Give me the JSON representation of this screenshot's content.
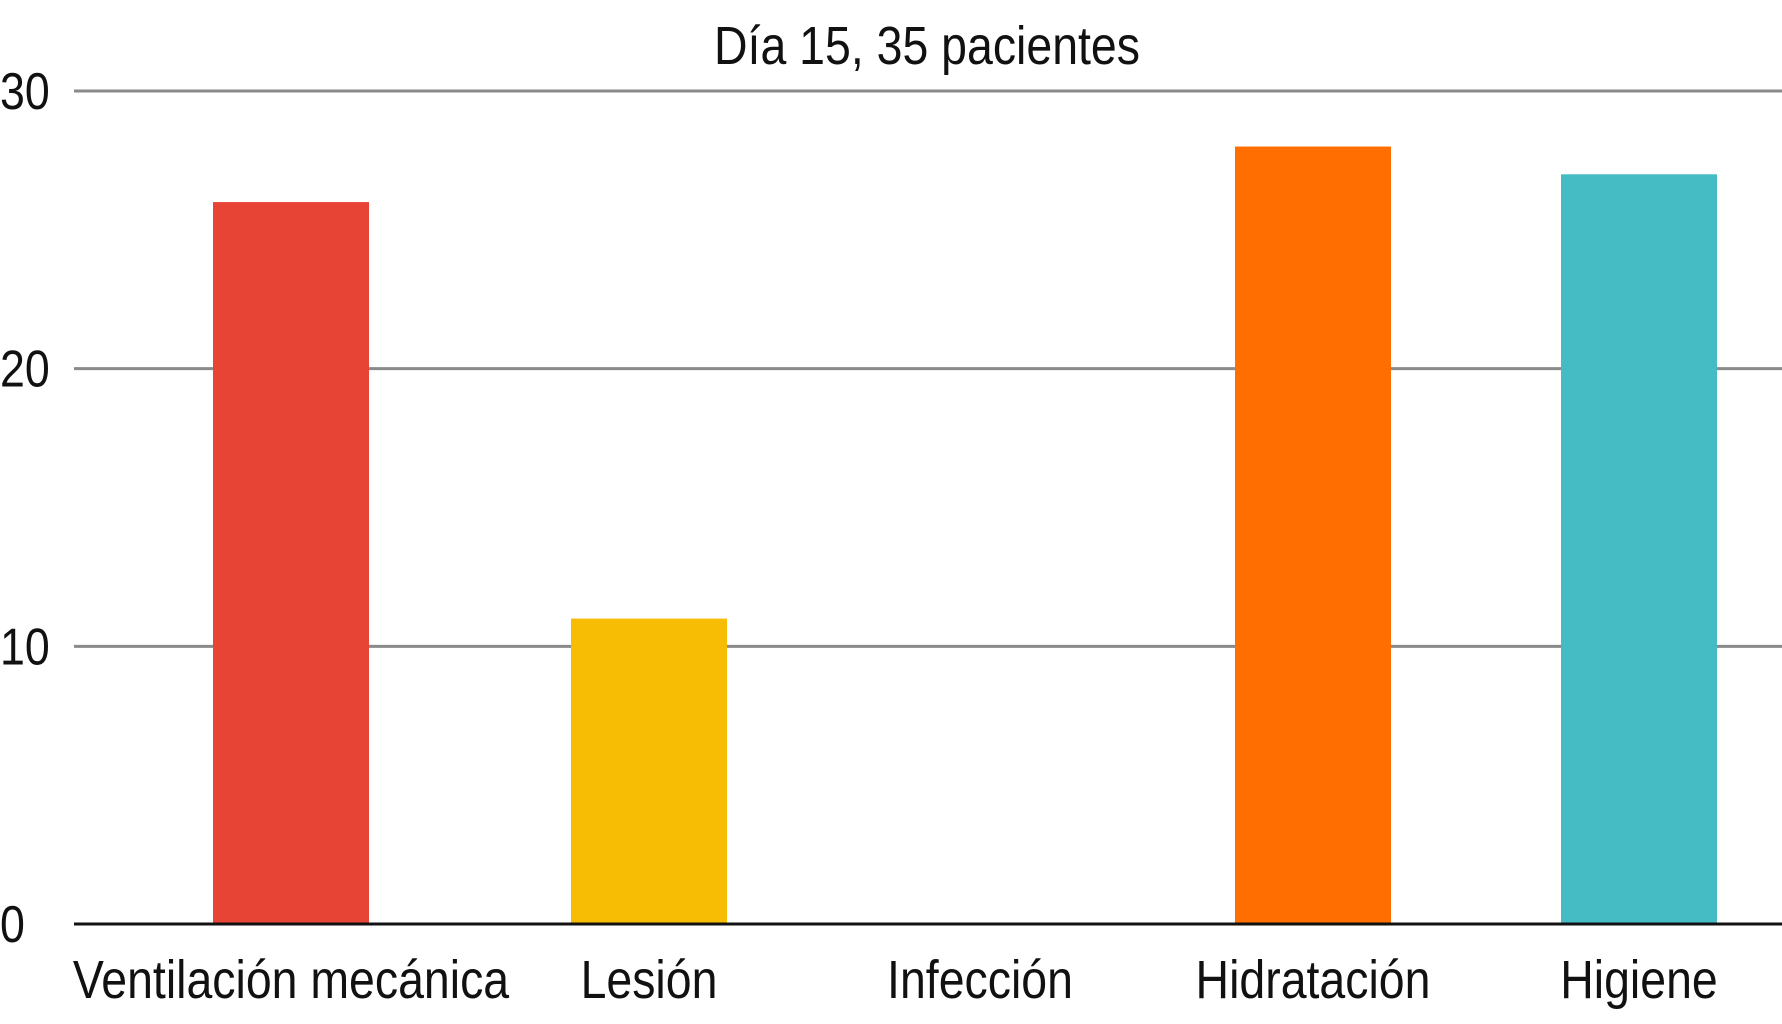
{
  "chart_data": {
    "type": "bar",
    "title": "Día 15, 35 pacientes",
    "xlabel": "",
    "ylabel": "",
    "ylim": [
      0,
      30
    ],
    "yticks": [
      0,
      10,
      20,
      30
    ],
    "grid": true,
    "categories": [
      "Ventilación mecánica",
      "Lesión",
      "Infección",
      "Hidratación",
      "Higiene"
    ],
    "values": [
      26,
      11,
      0,
      28,
      27
    ],
    "colors": [
      "#E84436",
      "#F7BD05",
      "#888888",
      "#FF6E00",
      "#45BBC4"
    ]
  }
}
